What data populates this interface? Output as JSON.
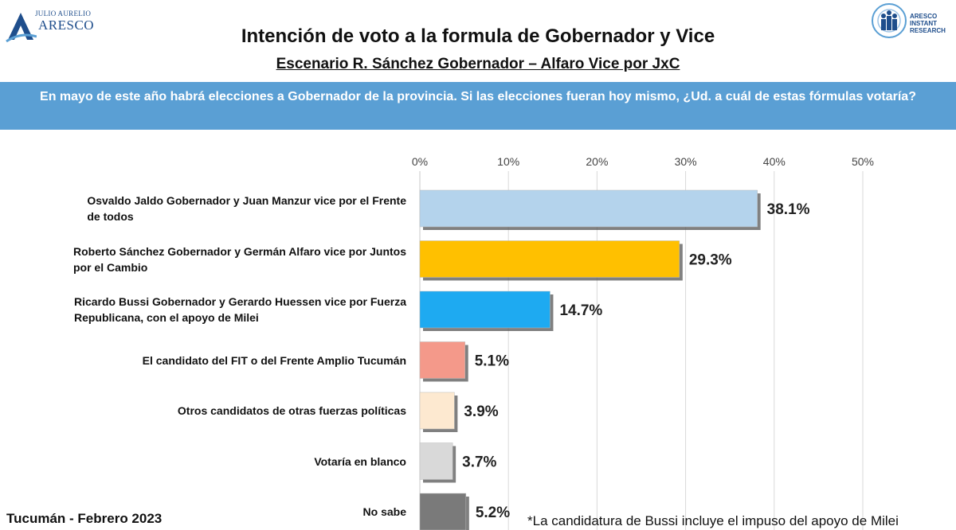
{
  "header": {
    "logo_left_top": "JULIO AURELIO",
    "logo_left_main": "ARESCO",
    "logo_right_lines": [
      "ARESCO",
      "INSTANT",
      "RESEARCH"
    ]
  },
  "title": "Intención de voto a la formula de Gobernador y Vice",
  "subtitle": "Escenario R. Sánchez Gobernador – Alfaro Vice por JxC",
  "question": "En mayo de este año habrá elecciones a Gobernador de la provincia. Si las elecciones fueran hoy mismo, ¿Ud. a cuál de estas fórmulas votaría?",
  "footer": {
    "left": "Tucumán - Febrero 2023",
    "right": "*La candidatura de Bussi incluye el impuso del apoyo de Milei"
  },
  "chart_data": {
    "type": "bar",
    "orientation": "horizontal",
    "categories": [
      "Osvaldo Jaldo Gobernador y Juan Manzur vice por el Frente de todos",
      "Roberto Sánchez Gobernador y Germán Alfaro vice por Juntos por el Cambio",
      "Ricardo Bussi Gobernador y Gerardo Huessen vice por Fuerza Republicana, con el apoyo de Milei",
      "El candidato del FIT o del Frente Amplio Tucumán",
      "Otros candidatos de otras fuerzas políticas",
      "Votaría en blanco",
      "No sabe"
    ],
    "category_lines": [
      [
        "Osvaldo Jaldo Gobernador y Juan Manzur vice por el Frente",
        "de todos"
      ],
      [
        "Roberto Sánchez Gobernador y Germán Alfaro vice por Juntos",
        "por el Cambio"
      ],
      [
        "Ricardo Bussi Gobernador y Gerardo Huessen vice por Fuerza",
        "Republicana, con el apoyo de Milei"
      ],
      [
        "El candidato del FIT o del Frente Amplio Tucumán"
      ],
      [
        "Otros candidatos de otras fuerzas políticas"
      ],
      [
        "Votaría en blanco"
      ],
      [
        "No sabe"
      ]
    ],
    "values": [
      38.1,
      29.3,
      14.7,
      5.1,
      3.9,
      3.7,
      5.2
    ],
    "value_labels": [
      "38.1%",
      "29.3%",
      "14.7%",
      "5.1%",
      "3.9%",
      "3.7%",
      "5.2%"
    ],
    "colors": [
      "#b4d3ec",
      "#ffc000",
      "#1eaaf1",
      "#f4998a",
      "#fde9d0",
      "#d9d9d9",
      "#7a7a7a"
    ],
    "xlim": [
      0,
      50
    ],
    "xticks": [
      0,
      10,
      20,
      30,
      40,
      50
    ],
    "xtick_labels": [
      "0%",
      "10%",
      "20%",
      "30%",
      "40%",
      "50%"
    ],
    "grid": true,
    "axis_position": "top"
  }
}
